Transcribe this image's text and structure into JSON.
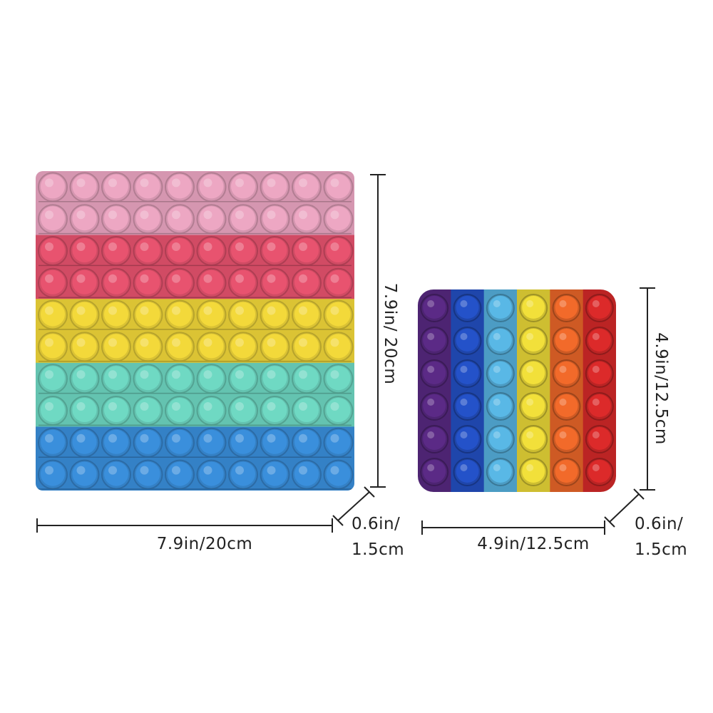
{
  "large": {
    "width_label": "7.9in/20cm",
    "height_label": "7.9in/ 20cm",
    "depth_label": [
      "0.6in/",
      "1.5cm"
    ]
  },
  "small": {
    "width_label": "4.9in/12.5cm",
    "height_label": "4.9in/12.5cm",
    "depth_label": [
      "0.6in/",
      "1.5cm"
    ]
  }
}
